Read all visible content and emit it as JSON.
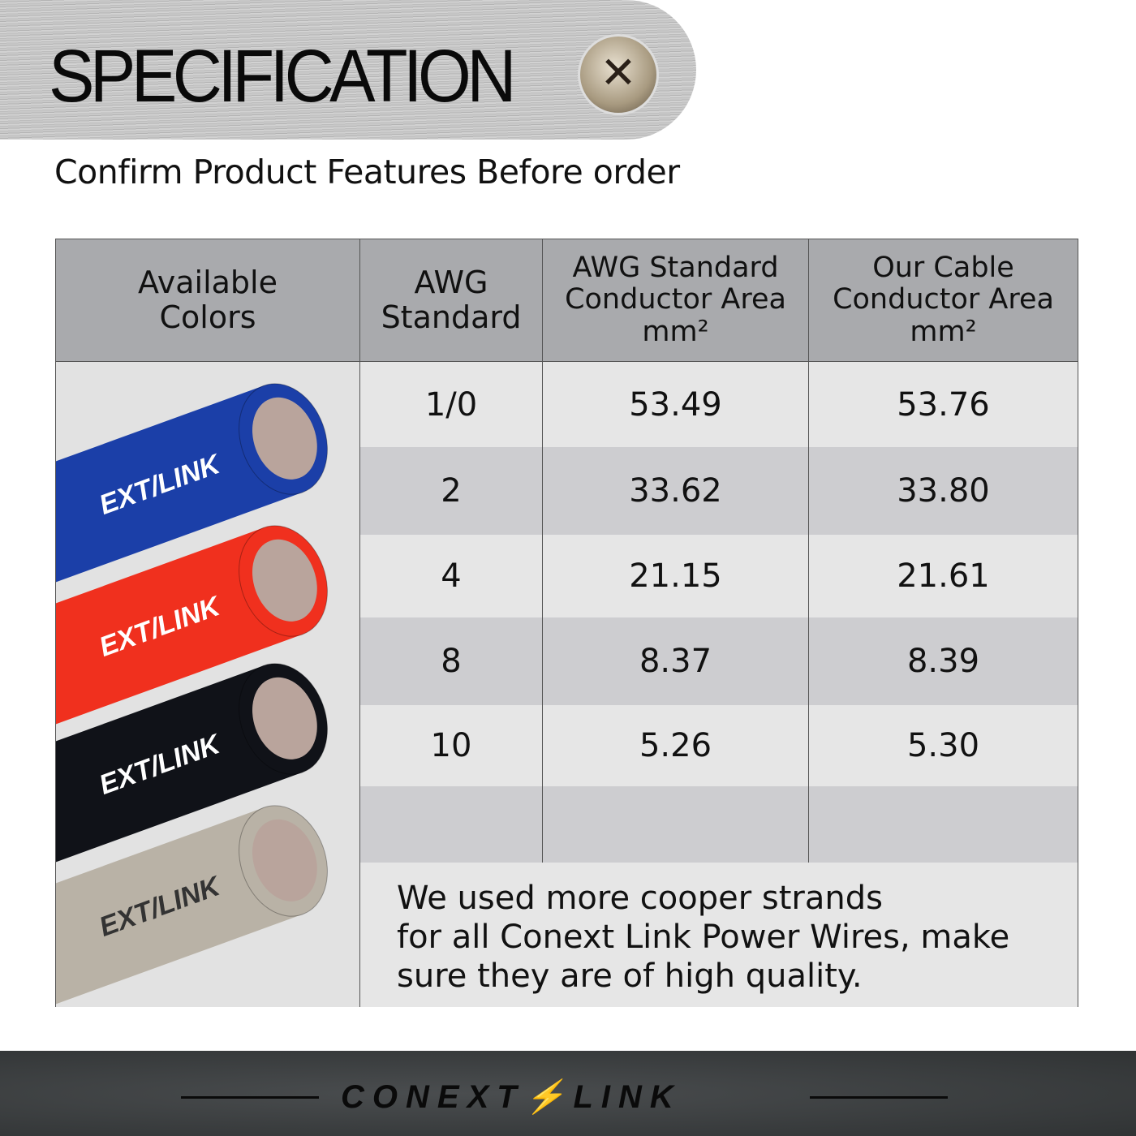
{
  "header": {
    "title": "SPECIFICATION",
    "subtitle": "Confirm Product Features Before order",
    "screw_icon": "phillips-screw-icon"
  },
  "table": {
    "headers": [
      "Available\nColors",
      "AWG\nStandard",
      "AWG Standard\nConductor Area\nmm²",
      "Our Cable\nConductor Area\nmm²"
    ],
    "rows": [
      {
        "awg": "1/0",
        "standard": "53.49",
        "ours": "53.76"
      },
      {
        "awg": "2",
        "standard": "33.62",
        "ours": "33.80"
      },
      {
        "awg": "4",
        "standard": "21.15",
        "ours": "21.61"
      },
      {
        "awg": "8",
        "standard": "8.37",
        "ours": "8.39"
      },
      {
        "awg": "10",
        "standard": "5.26",
        "ours": "5.30"
      },
      {
        "awg": "",
        "standard": "",
        "ours": ""
      }
    ],
    "row_colors": [
      "#e6e6e6",
      "#cdcdd0"
    ],
    "cable_colors": [
      "#1b3fa8",
      "#f0301e",
      "#101218",
      "#b9b2a6"
    ],
    "cable_print": "EXT/LINK",
    "note": "We used more cooper strands\n for all Conext Link Power Wires, make\nsure they are of high quality."
  },
  "footer": {
    "logo": "CONEXT/LINK",
    "logo_left": "CONEXT",
    "logo_right": "LINK",
    "accent": "#c0282a"
  }
}
